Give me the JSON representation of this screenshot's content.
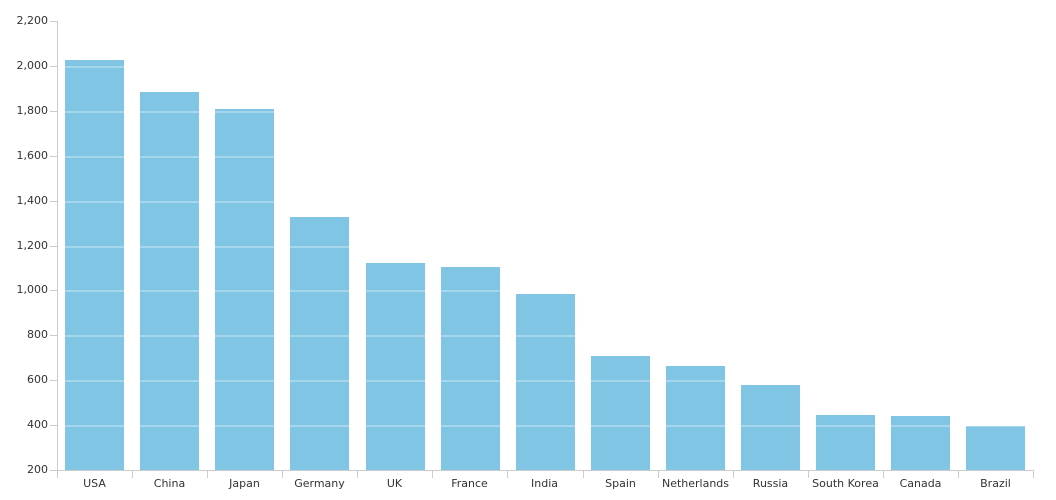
{
  "chart_data": {
    "type": "bar",
    "title": "",
    "xlabel": "",
    "ylabel": "",
    "categories": [
      "USA",
      "China",
      "Japan",
      "Germany",
      "UK",
      "France",
      "India",
      "Spain",
      "Netherlands",
      "Russia",
      "South Korea",
      "Canada",
      "Brazil"
    ],
    "values": [
      2025,
      1885,
      1810,
      1325,
      1120,
      1105,
      985,
      710,
      665,
      580,
      445,
      440,
      395
    ],
    "ylim": [
      200,
      2200
    ],
    "ytick_step": 200,
    "ytick_labels": [
      "200",
      "400",
      "600",
      "800",
      "1,000",
      "1,200",
      "1,400",
      "1,600",
      "1,800",
      "2,000",
      "2,200"
    ],
    "grid": true,
    "gridlines_drawn_over_bars": true,
    "legend": false,
    "colors": {
      "bar": "#80C5E4",
      "axis": "#CCCCCC",
      "gridline_over_bar": "rgba(255,255,255,0.3)",
      "text": "#333333",
      "background": "#FFFFFF"
    }
  }
}
